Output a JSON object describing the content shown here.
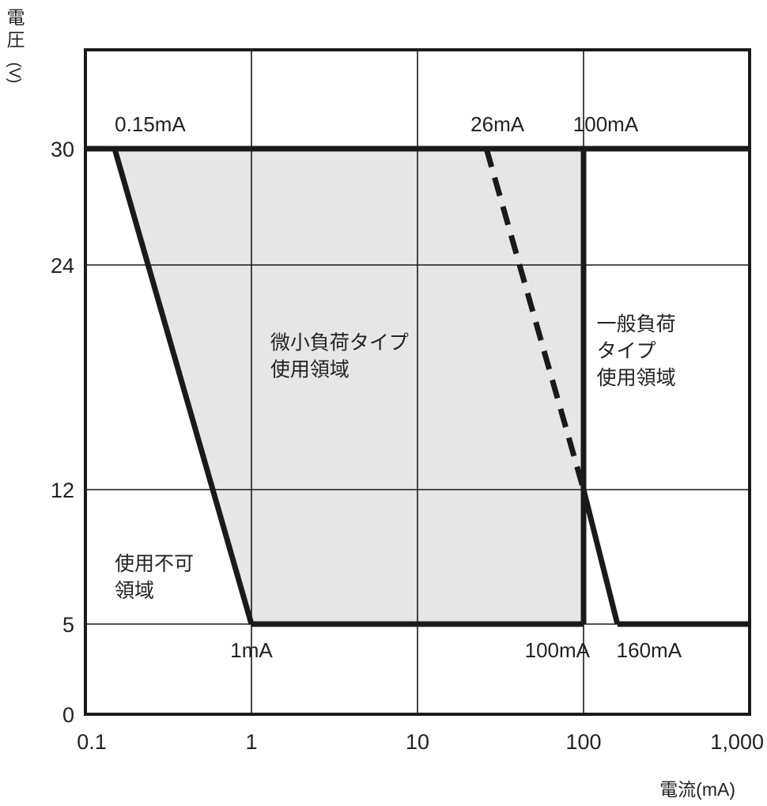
{
  "chart_data": {
    "type": "area",
    "x_scale": "log",
    "xlim": [
      0.1,
      1000
    ],
    "x_ticks": [
      "0.1",
      "1",
      "10",
      "100",
      "1,000"
    ],
    "xlabel": "電流(mA)",
    "y_ticks": [
      "0",
      "5",
      "12",
      "24",
      "30"
    ],
    "y_tick_values": [
      0,
      5,
      12,
      24,
      30
    ],
    "ylabel_chars": [
      "電",
      "圧",
      "(V)"
    ],
    "grid": true,
    "series": [
      {
        "style": "solid",
        "points": [
          [
            0.15,
            30
          ],
          [
            1,
            5
          ]
        ]
      },
      {
        "style": "dashed",
        "points": [
          [
            26,
            30
          ],
          [
            100,
            12
          ]
        ]
      },
      {
        "style": "solid",
        "points": [
          [
            100,
            30
          ],
          [
            100,
            5
          ]
        ]
      },
      {
        "style": "solid",
        "points": [
          [
            100,
            12
          ],
          [
            160,
            5
          ]
        ]
      },
      {
        "style": "solid",
        "points": [
          [
            0.1,
            30
          ],
          [
            1000,
            30
          ]
        ]
      },
      {
        "style": "solid",
        "points": [
          [
            1,
            5
          ],
          [
            100,
            5
          ]
        ]
      },
      {
        "style": "solid",
        "points": [
          [
            160,
            5
          ],
          [
            1000,
            5
          ]
        ]
      }
    ],
    "shaded_region": [
      [
        0.15,
        30
      ],
      [
        100,
        30
      ],
      [
        100,
        5
      ],
      [
        1,
        5
      ]
    ],
    "annotations": [
      {
        "text": "0.15mA",
        "x": 0.15,
        "y": 30,
        "pos": "above"
      },
      {
        "text": "26mA",
        "x": 26,
        "y": 30,
        "pos": "above"
      },
      {
        "text": "100mA",
        "x": 100,
        "y": 30,
        "pos": "above"
      },
      {
        "text": "1mA",
        "x": 1,
        "y": 5,
        "pos": "below"
      },
      {
        "text": "100mA",
        "x": 100,
        "y": 5,
        "pos": "below-left"
      },
      {
        "text": "160mA",
        "x": 160,
        "y": 5,
        "pos": "below"
      }
    ],
    "region_labels": [
      {
        "lines": [
          "微小負荷タイプ",
          "使用領域"
        ],
        "x": 1.3,
        "y": 19.5
      },
      {
        "lines": [
          "一般負荷",
          "タイプ",
          "使用領域"
        ],
        "x": 120,
        "y": 20.5
      },
      {
        "lines": [
          "使用不可",
          "領域"
        ],
        "x": 0.15,
        "y": 7.8
      }
    ],
    "colors": {
      "fill": "#e6e6e6",
      "line": "#1a1a1a",
      "grid": "#1a1a1a"
    }
  }
}
